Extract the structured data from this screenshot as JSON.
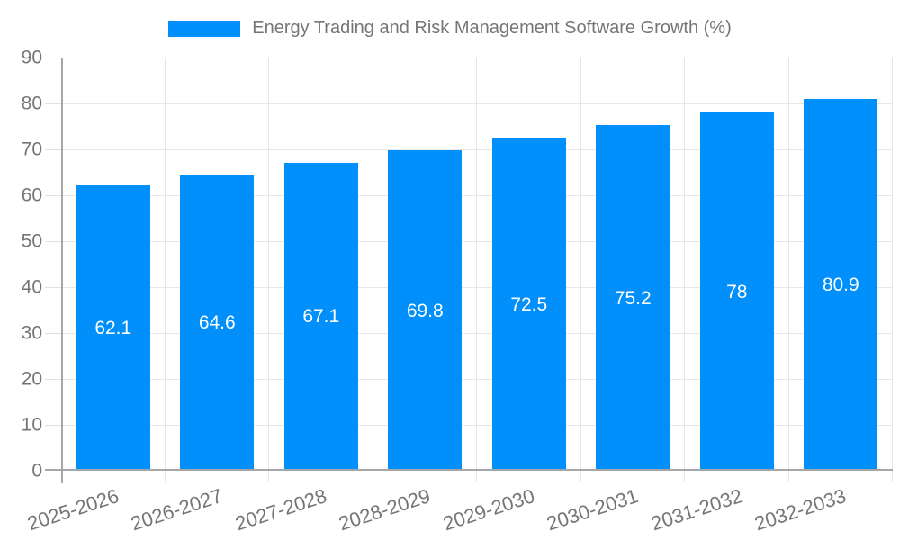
{
  "chart_data": {
    "type": "bar",
    "title": "Energy Trading and Risk Management Software Growth (%)",
    "categories": [
      "2025-2026",
      "2026-2027",
      "2027-2028",
      "2028-2029",
      "2029-2030",
      "2030-2031",
      "2031-2032",
      "2032-2033"
    ],
    "series": [
      {
        "name": "Energy Trading and Risk Management Software Growth (%)",
        "values": [
          62.1,
          64.6,
          67.1,
          69.8,
          72.5,
          75.2,
          78,
          80.9
        ],
        "value_labels": [
          "62.1",
          "64.6",
          "67.1",
          "69.8",
          "72.5",
          "75.2",
          "78",
          "80.9"
        ]
      }
    ],
    "xlabel": "",
    "ylabel": "",
    "ylim": [
      0,
      90
    ],
    "ytick_step": 10,
    "ytick_labels": [
      "0",
      "10",
      "20",
      "30",
      "40",
      "50",
      "60",
      "70",
      "80",
      "90"
    ],
    "grid": true,
    "legend_position": "top"
  },
  "colors": {
    "bar": "#008FFB",
    "grid": "#e6e6e6",
    "tick": "#e0e0e0",
    "axis": "#a6a6a6",
    "text": "#757575",
    "value_text": "#ffffff",
    "background": "#ffffff"
  }
}
